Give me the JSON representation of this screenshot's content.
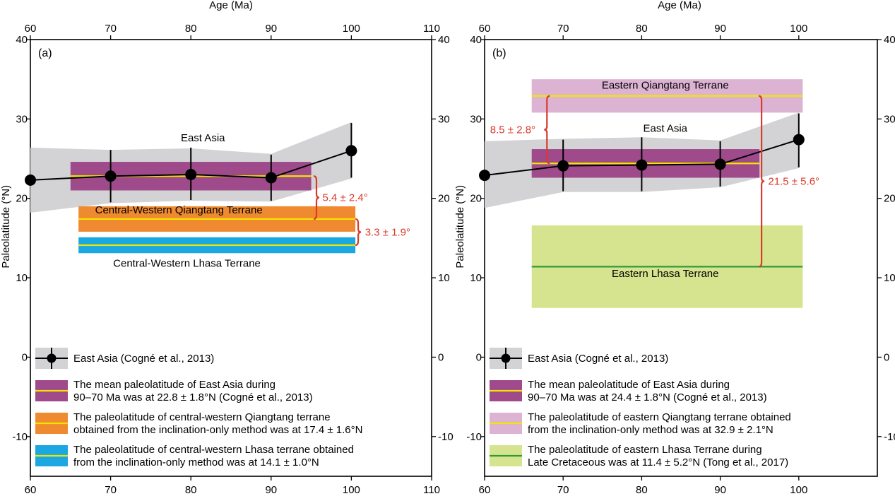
{
  "chart_data": [
    {
      "panel_label": "(a)",
      "type": "line",
      "xlabel": "Age (Ma)",
      "ylabel": "Paleolatitude (°N)",
      "xlim": [
        60,
        110
      ],
      "ylim": [
        -15,
        40
      ],
      "x_ticks": [
        "60",
        "70",
        "80",
        "90",
        "100",
        "110"
      ],
      "y_ticks": [
        "40",
        "30",
        "20",
        "10",
        "0",
        "-10"
      ],
      "east_asia_label": "East Asia",
      "series": [
        {
          "name": "East Asia (Cogné et al., 2013)",
          "x": [
            60,
            70,
            80,
            90,
            100
          ],
          "y": [
            22.3,
            22.8,
            23.0,
            22.6,
            26.0
          ],
          "err_low": [
            22.3,
            19.5,
            19.8,
            19.7,
            22.6
          ],
          "err_high": [
            22.3,
            26.1,
            26.4,
            25.5,
            29.5
          ]
        }
      ],
      "envelope": {
        "x": [
          60,
          70,
          80,
          90,
          100
        ],
        "upper": [
          26.4,
          26.1,
          26.3,
          25.6,
          29.6
        ],
        "lower": [
          18.2,
          19.4,
          19.7,
          19.6,
          22.5
        ]
      },
      "bands": [
        {
          "name": "East Asia mean",
          "x_range": [
            65,
            95
          ],
          "y_center": 22.8,
          "y_range": [
            21.0,
            24.6
          ],
          "fill": "#9e4a8b",
          "line": "#f2e600"
        },
        {
          "name": "Central-Western Qiangtang Terrane",
          "x_range": [
            66,
            100.5
          ],
          "y_center": 17.4,
          "y_range": [
            15.8,
            19.0
          ],
          "fill": "#f08a30",
          "line": "#f2e600"
        },
        {
          "name": "Central-Western Lhasa Terrane",
          "x_range": [
            66,
            100.5
          ],
          "y_center": 14.1,
          "y_range": [
            13.1,
            15.1
          ],
          "fill": "#1aa7e2",
          "line": "#f2e600"
        }
      ],
      "band_labels": [
        "Central-Western Qiangtang Terrane",
        "Central-Western Lhasa Terrane"
      ],
      "annotations": [
        "5.4 ± 2.4°",
        "3.3 ± 1.9°"
      ],
      "legend": [
        {
          "kind": "series",
          "text": [
            "East Asia (Cogné et al., 2013)"
          ]
        },
        {
          "kind": "band",
          "fill": "#9e4a8b",
          "line": "#f2e600",
          "text": [
            "The mean paleolatitude of East Asia during",
            "90–70 Ma was at 22.8 ± 1.8°N (Cogné et al., 2013)"
          ]
        },
        {
          "kind": "band",
          "fill": "#f08a30",
          "line": "#f2e600",
          "text": [
            "The paleolatitude of central-western Qiangtang terrane",
            "obtained from the inclination-only method was at 17.4 ± 1.6°N"
          ]
        },
        {
          "kind": "band",
          "fill": "#1aa7e2",
          "line": "#f2e600",
          "text": [
            "The paleolatitude of central-western Lhasa terrane obtained",
            "from the inclination-only method was at 14.1 ± 1.0°N"
          ]
        }
      ]
    },
    {
      "panel_label": "(b)",
      "type": "line",
      "xlabel": "Age (Ma)",
      "ylabel": "Paleolatitude (°N)",
      "xlim": [
        60,
        110
      ],
      "ylim": [
        -15,
        40
      ],
      "x_ticks": [
        "60",
        "70",
        "80",
        "90",
        "100"
      ],
      "y_ticks": [
        "40",
        "30",
        "20",
        "10",
        "0",
        "-10"
      ],
      "east_asia_label": "East Asia",
      "series": [
        {
          "name": "East Asia (Cogné et al., 2013)",
          "x": [
            60,
            70,
            80,
            90,
            100
          ],
          "y": [
            22.9,
            24.1,
            24.2,
            24.3,
            27.4
          ],
          "err_low": [
            22.9,
            20.9,
            20.9,
            21.5,
            23.9
          ],
          "err_high": [
            22.9,
            27.4,
            27.7,
            27.2,
            30.7
          ]
        }
      ],
      "envelope": {
        "x": [
          60,
          70,
          80,
          90,
          100
        ],
        "upper": [
          27.2,
          27.5,
          27.7,
          27.3,
          30.8
        ],
        "lower": [
          18.8,
          20.8,
          20.8,
          21.4,
          23.8
        ]
      },
      "bands": [
        {
          "name": "Eastern Qiangtang Terrane",
          "x_range": [
            66,
            100.5
          ],
          "y_center": 32.9,
          "y_range": [
            30.8,
            35.0
          ],
          "fill": "#dcb3d3",
          "line": "#f2e600"
        },
        {
          "name": "East Asia mean",
          "x_range": [
            66,
            95
          ],
          "y_center": 24.4,
          "y_range": [
            22.6,
            26.2
          ],
          "fill": "#9e4a8b",
          "line": "#f2e600"
        },
        {
          "name": "Eastern Lhasa Terrane",
          "x_range": [
            66,
            100.5
          ],
          "y_center": 11.4,
          "y_range": [
            6.2,
            16.6
          ],
          "fill": "#d6e48f",
          "line": "#2f9a3a"
        }
      ],
      "band_labels": [
        "Eastern Qiangtang Terrane",
        "Eastern Lhasa Terrane"
      ],
      "annotations": [
        "8.5 ± 2.8°",
        "21.5 ± 5.6°"
      ],
      "legend": [
        {
          "kind": "series",
          "text": [
            "East Asia (Cogné et al., 2013)"
          ]
        },
        {
          "kind": "band",
          "fill": "#9e4a8b",
          "line": "#f2e600",
          "text": [
            "The mean paleolatitude of East Asia during",
            "90–70 Ma was at 24.4 ± 1.8°N (Cogné et al., 2013)"
          ]
        },
        {
          "kind": "band",
          "fill": "#dcb3d3",
          "line": "#f2e600",
          "text": [
            "The paleolatitude of eastern Qiangtang terrane obtained",
            "from the inclination-only method was at 32.9 ± 2.1°N"
          ]
        },
        {
          "kind": "band",
          "fill": "#d6e48f",
          "line": "#2f9a3a",
          "text": [
            "The paleolatitude of eastern Lhasa Terrane during",
            "Late Cretaceous was at 11.4 ± 5.2°N (Tong et al., 2017)"
          ]
        }
      ]
    }
  ]
}
